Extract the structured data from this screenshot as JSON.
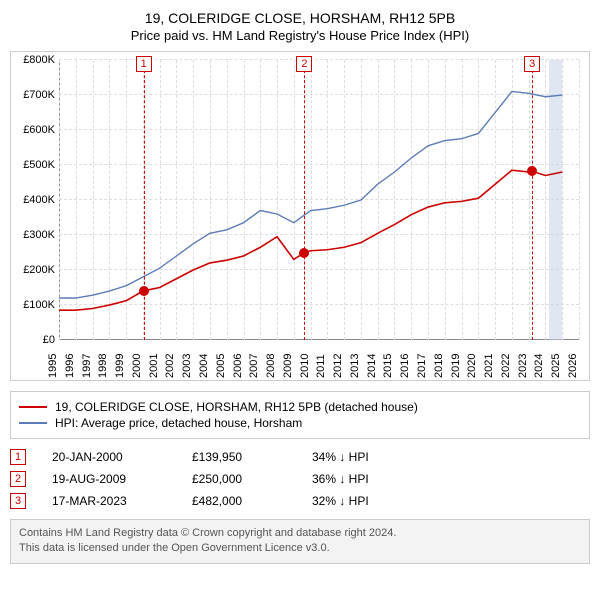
{
  "title": {
    "line1": "19, COLERIDGE CLOSE, HORSHAM, RH12 5PB",
    "line2": "Price paid vs. HM Land Registry's House Price Index (HPI)"
  },
  "chart": {
    "type": "line",
    "background_color": "#ffffff",
    "grid_color": "#dddddd",
    "axis_color": "#888888",
    "x": {
      "min": 1995,
      "max": 2026,
      "ticks": [
        1995,
        1996,
        1997,
        1998,
        1999,
        2000,
        2001,
        2002,
        2003,
        2004,
        2005,
        2006,
        2007,
        2008,
        2009,
        2010,
        2011,
        2012,
        2013,
        2014,
        2015,
        2016,
        2017,
        2018,
        2019,
        2020,
        2021,
        2022,
        2023,
        2024,
        2025,
        2026
      ],
      "label_fontsize": 11,
      "label_rotation": -90
    },
    "y": {
      "min": 0,
      "max": 800000,
      "ticks": [
        0,
        100000,
        200000,
        300000,
        400000,
        500000,
        600000,
        700000,
        800000
      ],
      "tick_labels": [
        "£0",
        "£100K",
        "£200K",
        "£300K",
        "£400K",
        "£500K",
        "£600K",
        "£700K",
        "£800K"
      ],
      "label_fontsize": 11
    },
    "band": {
      "color": "#c8d4e8",
      "opacity": 0.55,
      "year_from": 2024.2,
      "year_to": 2025.0
    },
    "series": [
      {
        "name": "hpi",
        "label": "HPI: Average price, detached house, Horsham",
        "color": "#5b7cb8",
        "line_width": 1.4,
        "points": [
          [
            1995.0,
            120000
          ],
          [
            1996.0,
            120000
          ],
          [
            1997.0,
            128000
          ],
          [
            1998.0,
            140000
          ],
          [
            1999.0,
            155000
          ],
          [
            2000.0,
            180000
          ],
          [
            2001.0,
            205000
          ],
          [
            2002.0,
            240000
          ],
          [
            2003.0,
            275000
          ],
          [
            2004.0,
            305000
          ],
          [
            2005.0,
            315000
          ],
          [
            2006.0,
            335000
          ],
          [
            2007.0,
            370000
          ],
          [
            2008.0,
            360000
          ],
          [
            2009.0,
            335000
          ],
          [
            2010.0,
            370000
          ],
          [
            2011.0,
            375000
          ],
          [
            2012.0,
            385000
          ],
          [
            2013.0,
            400000
          ],
          [
            2014.0,
            445000
          ],
          [
            2015.0,
            480000
          ],
          [
            2016.0,
            520000
          ],
          [
            2017.0,
            555000
          ],
          [
            2018.0,
            570000
          ],
          [
            2019.0,
            575000
          ],
          [
            2020.0,
            590000
          ],
          [
            2021.0,
            650000
          ],
          [
            2022.0,
            710000
          ],
          [
            2023.0,
            705000
          ],
          [
            2024.0,
            695000
          ],
          [
            2025.0,
            700000
          ]
        ]
      },
      {
        "name": "property",
        "label": "19, COLERIDGE CLOSE, HORSHAM, RH12 5PB (detached house)",
        "color": "#cc0000",
        "line_width": 1.6,
        "points": [
          [
            1995.0,
            85000
          ],
          [
            1996.0,
            85000
          ],
          [
            1997.0,
            90000
          ],
          [
            1998.0,
            100000
          ],
          [
            1999.0,
            112000
          ],
          [
            2000.0,
            139950
          ],
          [
            2001.0,
            150000
          ],
          [
            2002.0,
            175000
          ],
          [
            2003.0,
            200000
          ],
          [
            2004.0,
            220000
          ],
          [
            2005.0,
            228000
          ],
          [
            2006.0,
            240000
          ],
          [
            2007.0,
            265000
          ],
          [
            2008.0,
            295000
          ],
          [
            2009.0,
            230000
          ],
          [
            2009.63,
            250000
          ],
          [
            2010.0,
            255000
          ],
          [
            2011.0,
            258000
          ],
          [
            2012.0,
            265000
          ],
          [
            2013.0,
            278000
          ],
          [
            2014.0,
            305000
          ],
          [
            2015.0,
            330000
          ],
          [
            2016.0,
            358000
          ],
          [
            2017.0,
            380000
          ],
          [
            2018.0,
            392000
          ],
          [
            2019.0,
            396000
          ],
          [
            2020.0,
            405000
          ],
          [
            2021.0,
            445000
          ],
          [
            2022.0,
            485000
          ],
          [
            2023.0,
            480000
          ],
          [
            2023.21,
            482000
          ],
          [
            2024.0,
            470000
          ],
          [
            2025.0,
            480000
          ]
        ]
      }
    ],
    "events": [
      {
        "n": "1",
        "year": 2000.05,
        "price_y": 139950
      },
      {
        "n": "2",
        "year": 2009.63,
        "price_y": 250000
      },
      {
        "n": "3",
        "year": 2023.21,
        "price_y": 482000
      }
    ],
    "event_marker": {
      "border_color": "#cc0000",
      "text_color": "#cc0000",
      "bg": "#ffffff"
    },
    "point_dot": {
      "color": "#cc0000",
      "radius": 5
    }
  },
  "legend": {
    "items": [
      {
        "color": "#cc0000",
        "label": "19, COLERIDGE CLOSE, HORSHAM, RH12 5PB (detached house)"
      },
      {
        "color": "#5b7cb8",
        "label": "HPI: Average price, detached house, Horsham"
      }
    ]
  },
  "events_table": {
    "rows": [
      {
        "n": "1",
        "date": "20-JAN-2000",
        "price": "£139,950",
        "delta": "34% ↓ HPI"
      },
      {
        "n": "2",
        "date": "19-AUG-2009",
        "price": "£250,000",
        "delta": "36% ↓ HPI"
      },
      {
        "n": "3",
        "date": "17-MAR-2023",
        "price": "£482,000",
        "delta": "32% ↓ HPI"
      }
    ]
  },
  "footnote": {
    "line1": "Contains HM Land Registry data © Crown copyright and database right 2024.",
    "line2": "This data is licensed under the Open Government Licence v3.0."
  }
}
